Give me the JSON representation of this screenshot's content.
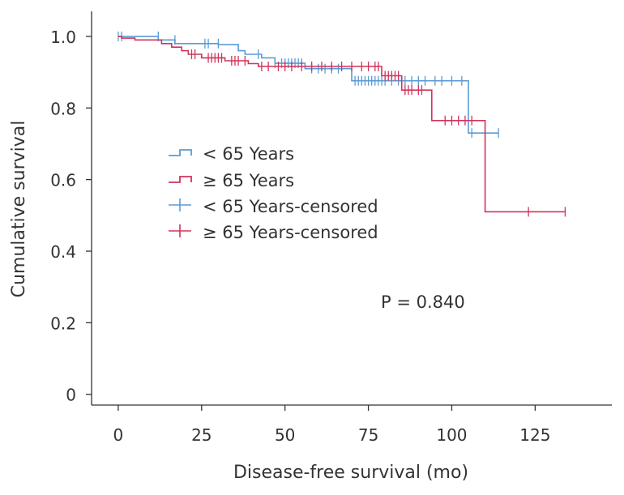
{
  "chart_data": {
    "type": "line",
    "subtype": "kaplan-meier",
    "xlabel": "Disease-free survival (mo)",
    "ylabel": "Cumulative survival",
    "xlim": [
      -8,
      148
    ],
    "ylim": [
      -0.03,
      1.07
    ],
    "xticks": [
      0,
      25,
      50,
      75,
      100,
      125
    ],
    "xtick_labels": [
      "0",
      "25",
      "50",
      "75",
      "100",
      "125"
    ],
    "yticks": [
      0,
      0.2,
      0.4,
      0.6,
      0.8,
      1.0
    ],
    "ytick_labels": [
      "0",
      "0.2",
      "0.4",
      "0.6",
      "0.8",
      "1.0"
    ],
    "annotation": "P = 0.840",
    "legend_position": "middle-left",
    "legend": [
      {
        "label": "< 65 Years",
        "kind": "step",
        "series": "lt65"
      },
      {
        "label": "≥ 65 Years",
        "kind": "step",
        "series": "ge65"
      },
      {
        "label": "< 65 Years-censored",
        "kind": "censor",
        "series": "lt65"
      },
      {
        "label": "≥ 65 Years-censored",
        "kind": "censor",
        "series": "ge65"
      }
    ],
    "series": [
      {
        "id": "lt65",
        "name": "< 65 Years",
        "color": "#5b9bd5",
        "steps": [
          [
            0,
            1.0
          ],
          [
            12,
            1.0
          ],
          [
            12,
            0.99
          ],
          [
            17,
            0.99
          ],
          [
            17,
            0.98
          ],
          [
            30,
            0.98
          ],
          [
            30,
            0.977
          ],
          [
            36,
            0.977
          ],
          [
            36,
            0.96
          ],
          [
            38,
            0.96
          ],
          [
            38,
            0.95
          ],
          [
            43,
            0.95
          ],
          [
            43,
            0.94
          ],
          [
            47,
            0.94
          ],
          [
            47,
            0.925
          ],
          [
            56,
            0.925
          ],
          [
            56,
            0.91
          ],
          [
            70,
            0.91
          ],
          [
            70,
            0.876
          ],
          [
            105,
            0.876
          ],
          [
            105,
            0.73
          ],
          [
            114,
            0.73
          ]
        ],
        "censored": [
          [
            0,
            1.0
          ],
          [
            1,
            1.0
          ],
          [
            12,
            1.0
          ],
          [
            17,
            0.99
          ],
          [
            26,
            0.98
          ],
          [
            27,
            0.98
          ],
          [
            30,
            0.98
          ],
          [
            42,
            0.95
          ],
          [
            47,
            0.925
          ],
          [
            49,
            0.925
          ],
          [
            50,
            0.925
          ],
          [
            51,
            0.925
          ],
          [
            52,
            0.925
          ],
          [
            53,
            0.925
          ],
          [
            54,
            0.925
          ],
          [
            55,
            0.925
          ],
          [
            58,
            0.91
          ],
          [
            60,
            0.91
          ],
          [
            62,
            0.91
          ],
          [
            64,
            0.91
          ],
          [
            66,
            0.91
          ],
          [
            71,
            0.876
          ],
          [
            72,
            0.876
          ],
          [
            73,
            0.876
          ],
          [
            74,
            0.876
          ],
          [
            75,
            0.876
          ],
          [
            76,
            0.876
          ],
          [
            77,
            0.876
          ],
          [
            78,
            0.876
          ],
          [
            79,
            0.876
          ],
          [
            80,
            0.876
          ],
          [
            82,
            0.876
          ],
          [
            84,
            0.876
          ],
          [
            86,
            0.876
          ],
          [
            88,
            0.876
          ],
          [
            90,
            0.876
          ],
          [
            92,
            0.876
          ],
          [
            95,
            0.876
          ],
          [
            97,
            0.876
          ],
          [
            100,
            0.876
          ],
          [
            103,
            0.876
          ],
          [
            106,
            0.73
          ],
          [
            114,
            0.73
          ]
        ]
      },
      {
        "id": "ge65",
        "name": "≥ 65 Years",
        "color": "#d0345a",
        "steps": [
          [
            0,
            1.0
          ],
          [
            1,
            1.0
          ],
          [
            1,
            0.995
          ],
          [
            5,
            0.995
          ],
          [
            5,
            0.99
          ],
          [
            13,
            0.99
          ],
          [
            13,
            0.98
          ],
          [
            16,
            0.98
          ],
          [
            16,
            0.97
          ],
          [
            19,
            0.97
          ],
          [
            19,
            0.96
          ],
          [
            21,
            0.96
          ],
          [
            21,
            0.95
          ],
          [
            25,
            0.95
          ],
          [
            25,
            0.94
          ],
          [
            32,
            0.94
          ],
          [
            32,
            0.932
          ],
          [
            39,
            0.932
          ],
          [
            39,
            0.924
          ],
          [
            42,
            0.924
          ],
          [
            42,
            0.916
          ],
          [
            79,
            0.916
          ],
          [
            79,
            0.89
          ],
          [
            85,
            0.89
          ],
          [
            85,
            0.85
          ],
          [
            94,
            0.85
          ],
          [
            94,
            0.765
          ],
          [
            110,
            0.765
          ],
          [
            110,
            0.51
          ],
          [
            134,
            0.51
          ]
        ],
        "censored": [
          [
            22,
            0.95
          ],
          [
            23,
            0.95
          ],
          [
            27,
            0.94
          ],
          [
            28,
            0.94
          ],
          [
            29,
            0.94
          ],
          [
            30,
            0.94
          ],
          [
            31,
            0.94
          ],
          [
            34,
            0.932
          ],
          [
            35,
            0.932
          ],
          [
            36,
            0.932
          ],
          [
            38,
            0.932
          ],
          [
            43,
            0.916
          ],
          [
            45,
            0.916
          ],
          [
            48,
            0.916
          ],
          [
            50,
            0.916
          ],
          [
            52,
            0.916
          ],
          [
            55,
            0.916
          ],
          [
            58,
            0.916
          ],
          [
            61,
            0.916
          ],
          [
            64,
            0.916
          ],
          [
            67,
            0.916
          ],
          [
            70,
            0.916
          ],
          [
            73,
            0.916
          ],
          [
            75,
            0.916
          ],
          [
            77,
            0.916
          ],
          [
            78,
            0.916
          ],
          [
            80,
            0.89
          ],
          [
            81,
            0.89
          ],
          [
            82,
            0.89
          ],
          [
            83,
            0.89
          ],
          [
            84,
            0.89
          ],
          [
            86,
            0.85
          ],
          [
            87,
            0.85
          ],
          [
            88,
            0.85
          ],
          [
            90,
            0.85
          ],
          [
            91,
            0.85
          ],
          [
            98,
            0.765
          ],
          [
            100,
            0.765
          ],
          [
            102,
            0.765
          ],
          [
            104,
            0.765
          ],
          [
            106,
            0.765
          ],
          [
            123,
            0.51
          ],
          [
            134,
            0.51
          ]
        ]
      }
    ]
  }
}
